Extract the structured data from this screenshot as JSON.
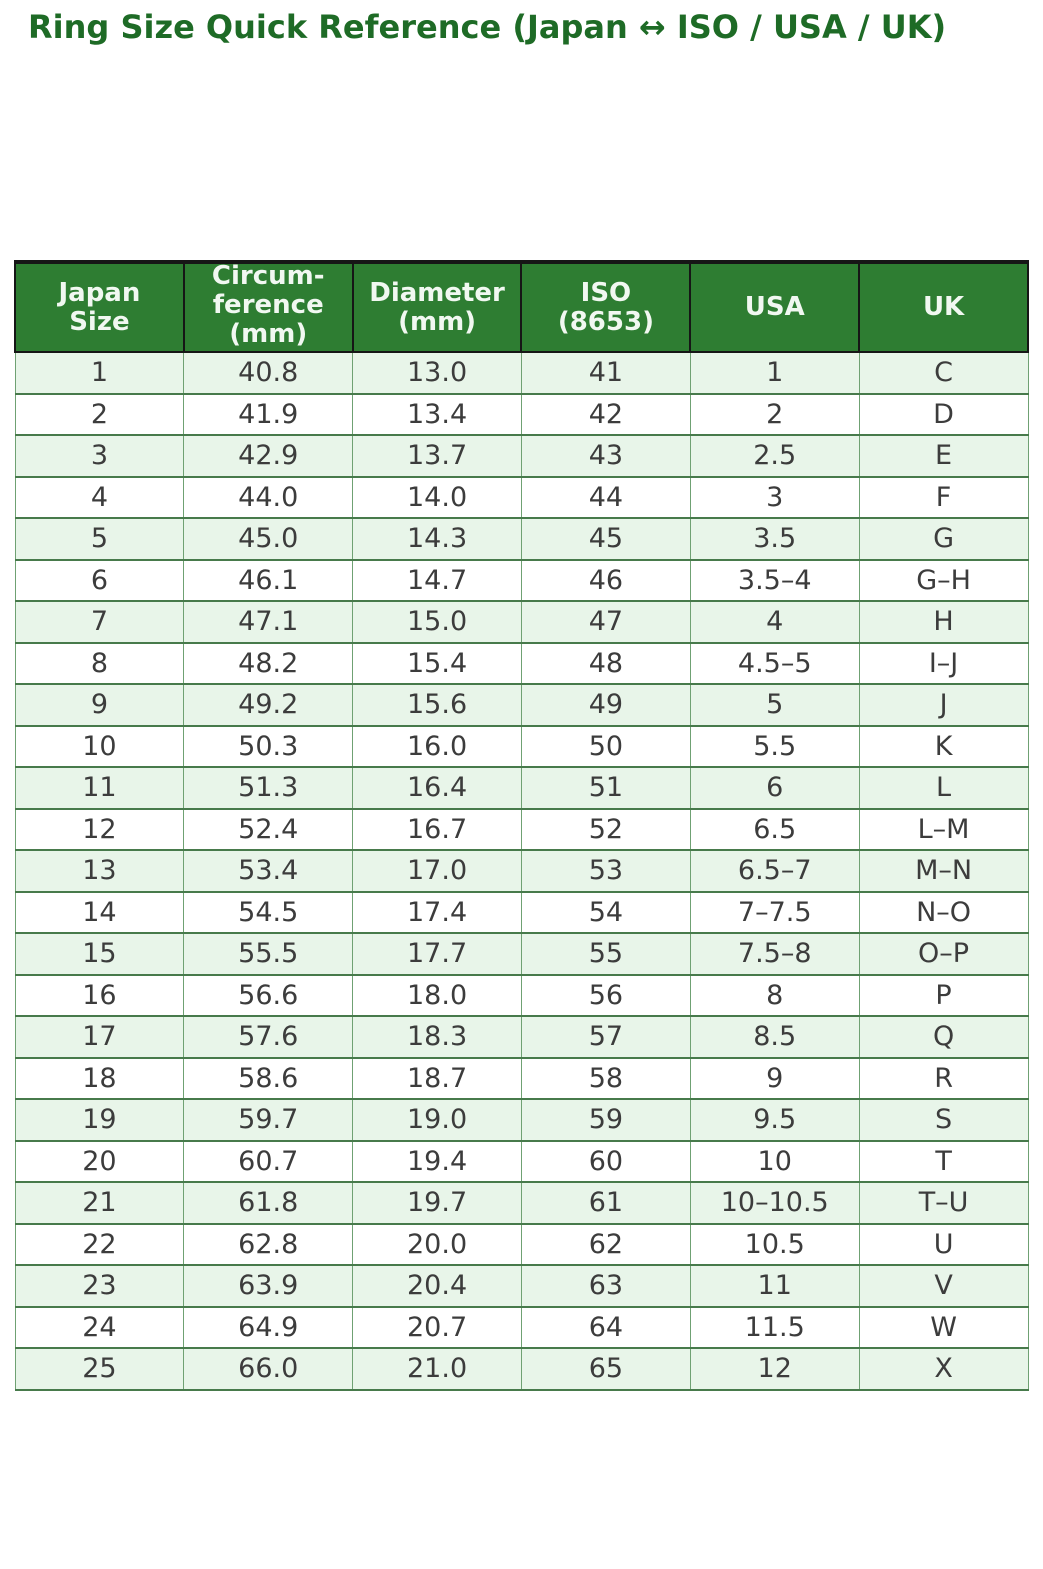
{
  "page": {
    "title": "Ring Size Quick Reference (Japan ↔ ISO / USA / UK)"
  },
  "colors": {
    "title_text": "#1e6b26",
    "header_bg": "#2e7d32",
    "header_text": "#f1f8f1",
    "header_border": "#161616",
    "row_alt_bg": "#e8f5e9",
    "row_bg": "#ffffff",
    "body_text": "#3c3c3c",
    "h_border": "#477a4b",
    "v_border": "#6fa173"
  },
  "table": {
    "headers": [
      {
        "id": "japan_size",
        "label": "Japan\nSize"
      },
      {
        "id": "circumference_mm",
        "label": "Circum-\nference\n(mm)"
      },
      {
        "id": "diameter_mm",
        "label": "Diameter\n(mm)"
      },
      {
        "id": "iso_8653",
        "label": "ISO\n(8653)"
      },
      {
        "id": "usa",
        "label": "USA"
      },
      {
        "id": "uk",
        "label": "UK"
      }
    ]
  },
  "chart_data": {
    "type": "table",
    "title": "Ring Size Quick Reference (Japan ↔ ISO / USA / UK)",
    "columns": [
      "Japan Size",
      "Circumference (mm)",
      "Diameter (mm)",
      "ISO (8653)",
      "USA",
      "UK"
    ],
    "rows": [
      [
        "1",
        "40.8",
        "13.0",
        "41",
        "1",
        "C"
      ],
      [
        "2",
        "41.9",
        "13.4",
        "42",
        "2",
        "D"
      ],
      [
        "3",
        "42.9",
        "13.7",
        "43",
        "2.5",
        "E"
      ],
      [
        "4",
        "44.0",
        "14.0",
        "44",
        "3",
        "F"
      ],
      [
        "5",
        "45.0",
        "14.3",
        "45",
        "3.5",
        "G"
      ],
      [
        "6",
        "46.1",
        "14.7",
        "46",
        "3.5–4",
        "G–H"
      ],
      [
        "7",
        "47.1",
        "15.0",
        "47",
        "4",
        "H"
      ],
      [
        "8",
        "48.2",
        "15.4",
        "48",
        "4.5–5",
        "I–J"
      ],
      [
        "9",
        "49.2",
        "15.6",
        "49",
        "5",
        "J"
      ],
      [
        "10",
        "50.3",
        "16.0",
        "50",
        "5.5",
        "K"
      ],
      [
        "11",
        "51.3",
        "16.4",
        "51",
        "6",
        "L"
      ],
      [
        "12",
        "52.4",
        "16.7",
        "52",
        "6.5",
        "L–M"
      ],
      [
        "13",
        "53.4",
        "17.0",
        "53",
        "6.5–7",
        "M–N"
      ],
      [
        "14",
        "54.5",
        "17.4",
        "54",
        "7–7.5",
        "N–O"
      ],
      [
        "15",
        "55.5",
        "17.7",
        "55",
        "7.5–8",
        "O–P"
      ],
      [
        "16",
        "56.6",
        "18.0",
        "56",
        "8",
        "P"
      ],
      [
        "17",
        "57.6",
        "18.3",
        "57",
        "8.5",
        "Q"
      ],
      [
        "18",
        "58.6",
        "18.7",
        "58",
        "9",
        "R"
      ],
      [
        "19",
        "59.7",
        "19.0",
        "59",
        "9.5",
        "S"
      ],
      [
        "20",
        "60.7",
        "19.4",
        "60",
        "10",
        "T"
      ],
      [
        "21",
        "61.8",
        "19.7",
        "61",
        "10–10.5",
        "T–U"
      ],
      [
        "22",
        "62.8",
        "20.0",
        "62",
        "10.5",
        "U"
      ],
      [
        "23",
        "63.9",
        "20.4",
        "63",
        "11",
        "V"
      ],
      [
        "24",
        "64.9",
        "20.7",
        "64",
        "11.5",
        "W"
      ],
      [
        "25",
        "66.0",
        "21.0",
        "65",
        "12",
        "X"
      ]
    ]
  }
}
